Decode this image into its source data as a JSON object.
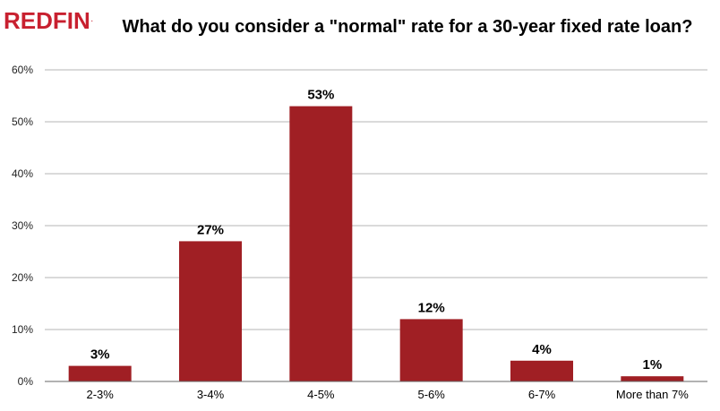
{
  "logo": {
    "text": "REDFIN",
    "mark": "."
  },
  "colors": {
    "brand": "#c8202f",
    "bar": "#a01f24",
    "grid": "#b5b5b5",
    "axis": "#666666"
  },
  "chart_data": {
    "type": "bar",
    "title": "What do you consider a \"normal\" rate for a 30-year fixed rate loan?",
    "categories": [
      "2-3%",
      "3-4%",
      "4-5%",
      "5-6%",
      "6-7%",
      "More than 7%"
    ],
    "values": [
      3,
      27,
      53,
      12,
      4,
      1
    ],
    "data_labels": [
      "3%",
      "27%",
      "53%",
      "12%",
      "4%",
      "1%"
    ],
    "ylim": [
      0,
      60
    ],
    "yticks": [
      0,
      10,
      20,
      30,
      40,
      50,
      60
    ],
    "ytick_labels": [
      "0%",
      "10%",
      "20%",
      "30%",
      "40%",
      "50%",
      "60%"
    ],
    "xlabel": "",
    "ylabel": "",
    "grid": true,
    "legend": "none"
  }
}
